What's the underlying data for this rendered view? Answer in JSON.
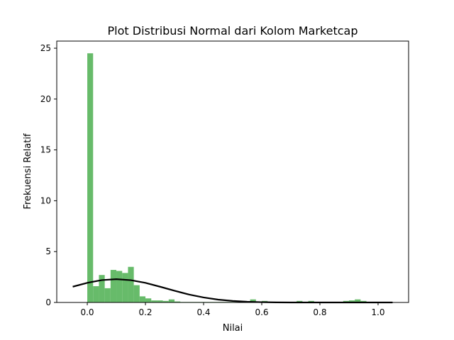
{
  "chart_data": {
    "type": "bar",
    "title": "Plot Distribusi Normal dari Kolom Marketcap",
    "xlabel": "Nilai",
    "ylabel": "Frekuensi Relatif",
    "xlim": [
      -0.105,
      1.105
    ],
    "ylim": [
      0,
      25.7
    ],
    "grid": false,
    "x_ticks": [
      0.0,
      0.2,
      0.4,
      0.6,
      0.8,
      1.0
    ],
    "x_tick_labels": [
      "0.0",
      "0.2",
      "0.4",
      "0.6",
      "0.8",
      "1.0"
    ],
    "y_ticks": [
      0,
      5,
      10,
      15,
      20,
      25
    ],
    "y_tick_labels": [
      "0",
      "5",
      "10",
      "15",
      "20",
      "25"
    ],
    "colors": {
      "bars": "#4caf50",
      "curve": "#000000"
    },
    "histogram": {
      "bin_edges": [
        0.0,
        0.02,
        0.04,
        0.06,
        0.08,
        0.1,
        0.12,
        0.14,
        0.16,
        0.18,
        0.2,
        0.22,
        0.24,
        0.26,
        0.28,
        0.3,
        0.32,
        0.34,
        0.36,
        0.38,
        0.4,
        0.42,
        0.44,
        0.46,
        0.48,
        0.5,
        0.52,
        0.54,
        0.56,
        0.58,
        0.6,
        0.62,
        0.64,
        0.66,
        0.68,
        0.7,
        0.72,
        0.74,
        0.76,
        0.78,
        0.8,
        0.82,
        0.84,
        0.86,
        0.88,
        0.9,
        0.92,
        0.94,
        0.96,
        0.98,
        1.0
      ],
      "values": [
        24.5,
        1.6,
        2.7,
        1.4,
        3.2,
        3.1,
        2.9,
        3.5,
        1.7,
        0.6,
        0.4,
        0.2,
        0.2,
        0.15,
        0.3,
        0.1,
        0.05,
        0.05,
        0.05,
        0.05,
        0.05,
        0.05,
        0.05,
        0.05,
        0.05,
        0.05,
        0.05,
        0.05,
        0.3,
        0.05,
        0.15,
        0.05,
        0.05,
        0.05,
        0.05,
        0.05,
        0.15,
        0.05,
        0.15,
        0.05,
        0.05,
        0.05,
        0.05,
        0.05,
        0.15,
        0.2,
        0.3,
        0.15,
        0.05,
        0.05
      ]
    },
    "series": [
      {
        "type": "line",
        "x": [
          -0.05,
          0.0,
          0.05,
          0.1,
          0.15,
          0.2,
          0.25,
          0.3,
          0.35,
          0.4,
          0.45,
          0.5,
          0.55,
          0.6,
          0.65,
          0.7,
          0.75,
          0.8,
          0.85,
          0.9,
          0.95,
          1.0,
          1.05
        ],
        "y": [
          1.55,
          1.93,
          2.2,
          2.29,
          2.19,
          1.93,
          1.55,
          1.15,
          0.78,
          0.49,
          0.28,
          0.15,
          0.07,
          0.03,
          0.01,
          0.0,
          0.0,
          0.0,
          0.0,
          0.0,
          0.0,
          0.0,
          0.0
        ]
      }
    ]
  }
}
